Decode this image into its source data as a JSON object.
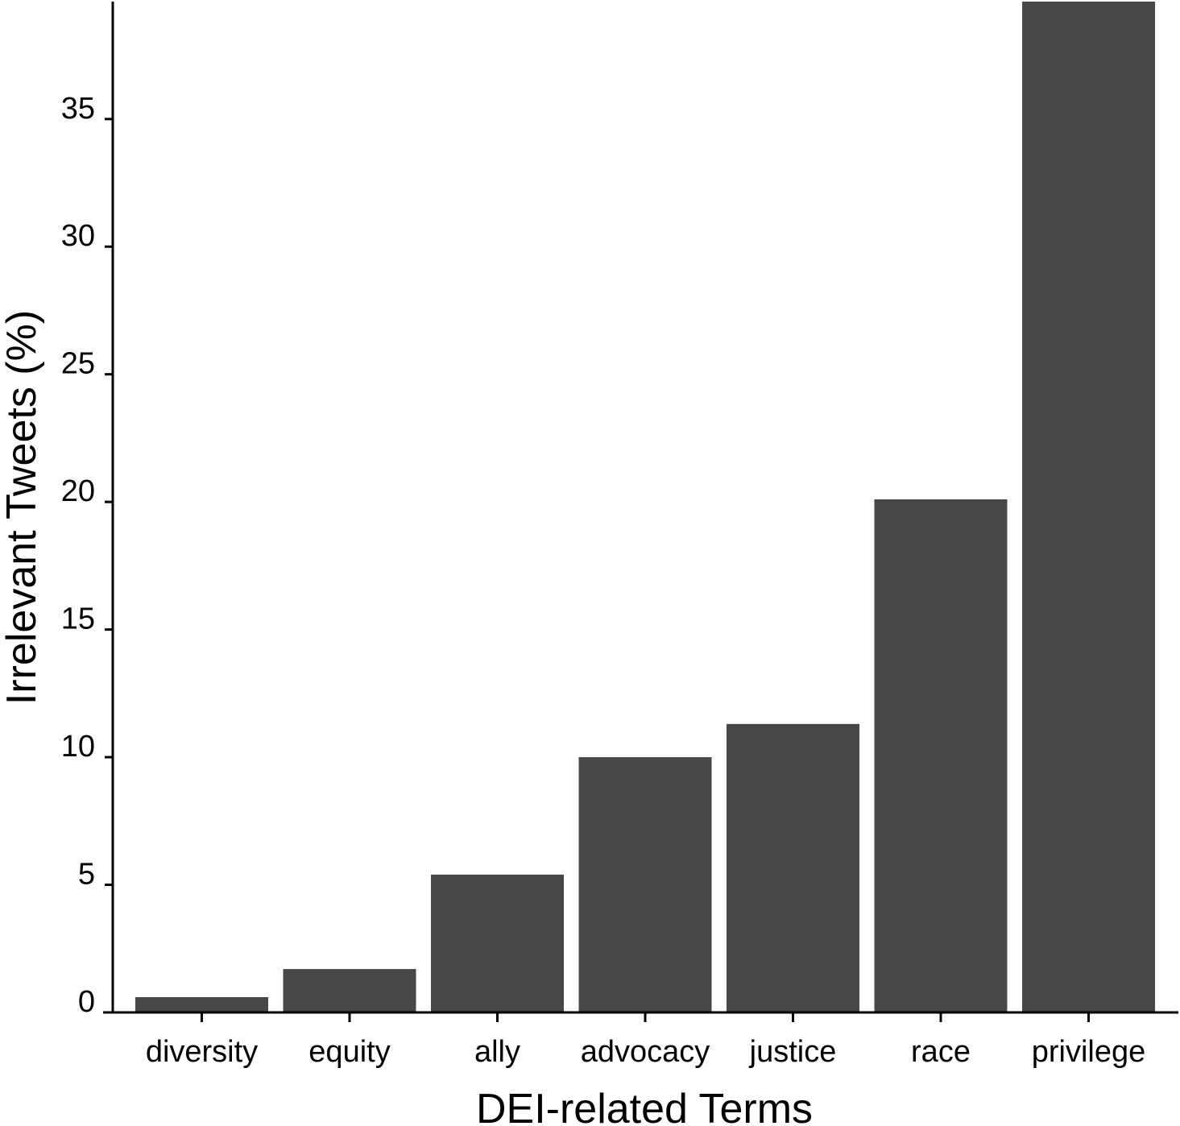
{
  "chart_data": {
    "type": "bar",
    "title": "",
    "xlabel": "DEI-related Terms",
    "ylabel": "Irrelevant Tweets (%)",
    "categories": [
      "diversity",
      "equity",
      "ally",
      "advocacy",
      "justice",
      "race",
      "privilege"
    ],
    "values": [
      0.6,
      1.7,
      5.4,
      10.0,
      11.3,
      20.1,
      39.6
    ],
    "ylim": [
      0,
      39.6
    ],
    "yticks": [
      0,
      5,
      10,
      15,
      20,
      25,
      30,
      35
    ],
    "grid": false,
    "legend": "none",
    "colors": {
      "bar": "#474747",
      "axis": "#000000"
    }
  }
}
